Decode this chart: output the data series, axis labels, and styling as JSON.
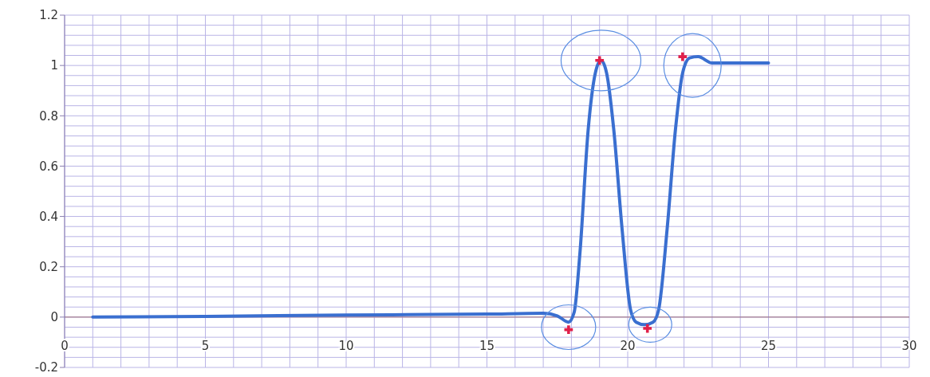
{
  "chart_data": {
    "type": "line",
    "xlim": [
      0,
      30
    ],
    "xticks": [
      0,
      5,
      10,
      15,
      20,
      25,
      30
    ],
    "ylim": [
      -0.2,
      1.2
    ],
    "yticks": [
      -0.2,
      0,
      0.2,
      0.4,
      0.6,
      0.8,
      1,
      1.2
    ],
    "grid": true,
    "marker": "none",
    "ref_lines": [
      {
        "axis": "y",
        "value": 0,
        "color": "#9a6a7a"
      }
    ],
    "series": [
      {
        "color": "#3a6fd0",
        "x": [
          1,
          5,
          10,
          15,
          17,
          17.5,
          17.9,
          18.1,
          18.3,
          18.6,
          18.85,
          19.05,
          19.25,
          19.5,
          19.8,
          20.1,
          20.3,
          20.6,
          20.9,
          21.1,
          21.4,
          21.7,
          21.95,
          22.2,
          22.5,
          23,
          24,
          25
        ],
        "values": [
          0,
          0.003,
          0.008,
          0.012,
          0.015,
          0.005,
          -0.02,
          0.02,
          0.25,
          0.75,
          0.97,
          1.02,
          0.97,
          0.75,
          0.35,
          0.03,
          -0.02,
          -0.03,
          -0.02,
          0.03,
          0.35,
          0.75,
          0.97,
          1.03,
          1.035,
          1.01,
          1.01,
          1.01
        ]
      },
      {
        "type": "scatter",
        "color": "#e0204a",
        "marker": "cross",
        "x": [
          17.9,
          19.0,
          20.7,
          21.95
        ],
        "values": [
          -0.05,
          1.02,
          -0.045,
          1.035
        ]
      }
    ]
  }
}
